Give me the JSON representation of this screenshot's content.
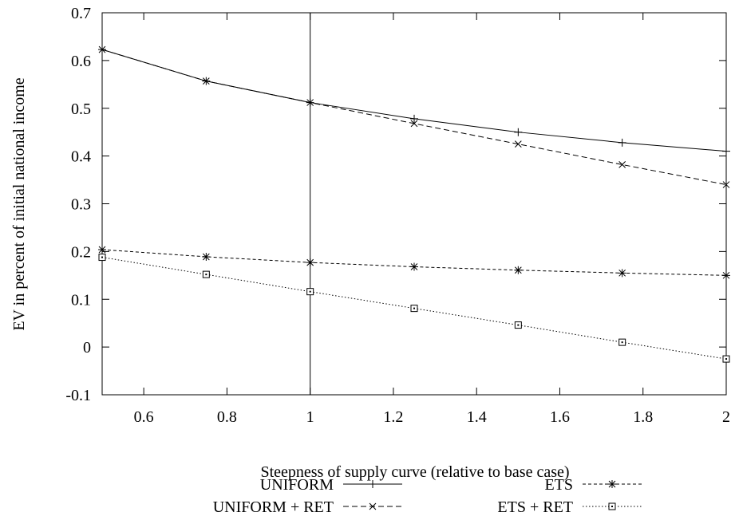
{
  "chart_data": {
    "type": "line",
    "title": "",
    "xlabel": "Steepness of supply curve (relative to base case)",
    "ylabel": "EV in percent of initial national income",
    "xlim": [
      0.5,
      2.0
    ],
    "ylim": [
      -0.1,
      0.7
    ],
    "xticks": [
      0.6,
      0.8,
      1,
      1.2,
      1.4,
      1.6,
      1.8,
      2
    ],
    "xtick_labels": [
      "0.6",
      "0.8",
      "1",
      "1.2",
      "1.4",
      "1.6",
      "1.8",
      "2"
    ],
    "yticks": [
      -0.1,
      0,
      0.1,
      0.2,
      0.3,
      0.4,
      0.5,
      0.6,
      0.7
    ],
    "ytick_labels": [
      "-0.1",
      "0",
      "0.1",
      "0.2",
      "0.3",
      "0.4",
      "0.5",
      "0.6",
      "0.7"
    ],
    "grid": false,
    "legend_position": "bottom",
    "reference_line_x": 1,
    "x": [
      0.5,
      0.75,
      1.0,
      1.25,
      1.5,
      1.75,
      2.0
    ],
    "series": [
      {
        "name": "UNIFORM",
        "values": [
          0.623,
          0.557,
          0.512,
          0.478,
          0.45,
          0.428,
          0.41
        ],
        "marker": "plus",
        "dash": "solid"
      },
      {
        "name": "UNIFORM + RET",
        "values": [
          0.623,
          0.557,
          0.512,
          0.468,
          0.425,
          0.382,
          0.34
        ],
        "marker": "cross",
        "dash": "dashed"
      },
      {
        "name": "ETS",
        "values": [
          0.204,
          0.189,
          0.177,
          0.168,
          0.161,
          0.155,
          0.15
        ],
        "marker": "star",
        "dash": "short-dashed"
      },
      {
        "name": "ETS + RET",
        "values": [
          0.188,
          0.152,
          0.116,
          0.081,
          0.046,
          0.01,
          -0.025
        ],
        "marker": "square",
        "dash": "dotted"
      }
    ]
  }
}
